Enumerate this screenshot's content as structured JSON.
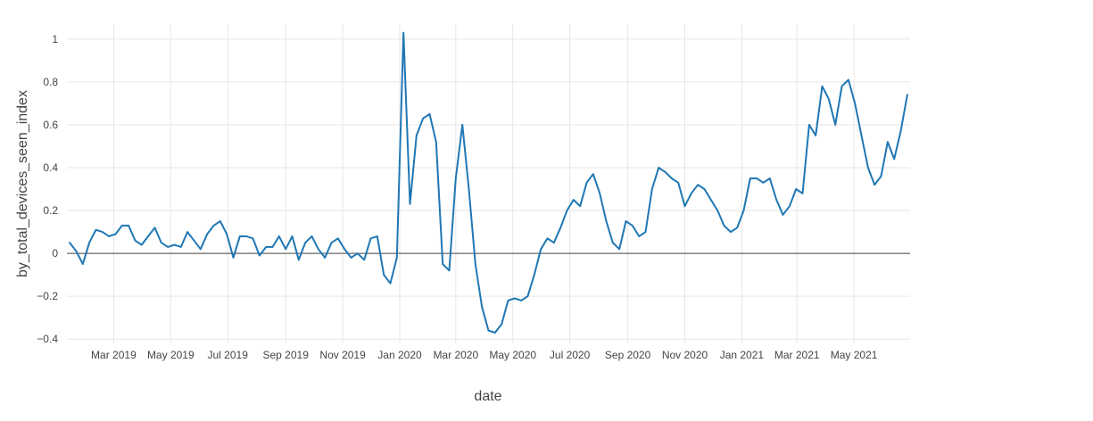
{
  "chart_data": {
    "type": "line",
    "title": "",
    "xlabel": "date",
    "ylabel": "by_total_devices_seen_index",
    "legend": "none",
    "grid": true,
    "xlim": [
      "2019-01-10",
      "2021-06-30"
    ],
    "ylim": [
      -0.42,
      1.07
    ],
    "x_ticks": [
      {
        "date": "2019-03-01",
        "label": "Mar 2019"
      },
      {
        "date": "2019-05-01",
        "label": "May 2019"
      },
      {
        "date": "2019-07-01",
        "label": "Jul 2019"
      },
      {
        "date": "2019-09-01",
        "label": "Sep 2019"
      },
      {
        "date": "2019-11-01",
        "label": "Nov 2019"
      },
      {
        "date": "2020-01-01",
        "label": "Jan 2020"
      },
      {
        "date": "2020-03-01",
        "label": "Mar 2020"
      },
      {
        "date": "2020-05-01",
        "label": "May 2020"
      },
      {
        "date": "2020-07-01",
        "label": "Jul 2020"
      },
      {
        "date": "2020-09-01",
        "label": "Sep 2020"
      },
      {
        "date": "2020-11-01",
        "label": "Nov 2020"
      },
      {
        "date": "2021-01-01",
        "label": "Jan 2021"
      },
      {
        "date": "2021-03-01",
        "label": "Mar 2021"
      },
      {
        "date": "2021-05-01",
        "label": "May 2021"
      }
    ],
    "y_ticks": [
      {
        "value": -0.4,
        "label": "−0.4"
      },
      {
        "value": -0.2,
        "label": "−0.2"
      },
      {
        "value": 0,
        "label": "0"
      },
      {
        "value": 0.2,
        "label": "0.2"
      },
      {
        "value": 0.4,
        "label": "0.4"
      },
      {
        "value": 0.6,
        "label": "0.6"
      },
      {
        "value": 0.8,
        "label": "0.8"
      },
      {
        "value": 1,
        "label": "1"
      }
    ],
    "colors": {
      "line": "#1f77b4",
      "grid": "#e6e6e6",
      "zero_line": "#7f7f7f",
      "text": "#444444",
      "background": "#ffffff"
    },
    "series": [
      {
        "name": "by_total_devices_seen_index",
        "x": [
          "2019-01-13",
          "2019-01-20",
          "2019-01-27",
          "2019-02-03",
          "2019-02-10",
          "2019-02-17",
          "2019-02-24",
          "2019-03-03",
          "2019-03-10",
          "2019-03-17",
          "2019-03-24",
          "2019-03-31",
          "2019-04-07",
          "2019-04-14",
          "2019-04-21",
          "2019-04-28",
          "2019-05-05",
          "2019-05-12",
          "2019-05-19",
          "2019-05-26",
          "2019-06-02",
          "2019-06-09",
          "2019-06-16",
          "2019-06-23",
          "2019-06-30",
          "2019-07-07",
          "2019-07-14",
          "2019-07-21",
          "2019-07-28",
          "2019-08-04",
          "2019-08-11",
          "2019-08-18",
          "2019-08-25",
          "2019-09-01",
          "2019-09-08",
          "2019-09-15",
          "2019-09-22",
          "2019-09-29",
          "2019-10-06",
          "2019-10-13",
          "2019-10-20",
          "2019-10-27",
          "2019-11-03",
          "2019-11-10",
          "2019-11-17",
          "2019-11-24",
          "2019-12-01",
          "2019-12-08",
          "2019-12-15",
          "2019-12-22",
          "2019-12-29",
          "2020-01-05",
          "2020-01-12",
          "2020-01-19",
          "2020-01-26",
          "2020-02-02",
          "2020-02-09",
          "2020-02-16",
          "2020-02-23",
          "2020-03-01",
          "2020-03-08",
          "2020-03-15",
          "2020-03-22",
          "2020-03-29",
          "2020-04-05",
          "2020-04-12",
          "2020-04-19",
          "2020-04-26",
          "2020-05-03",
          "2020-05-10",
          "2020-05-17",
          "2020-05-24",
          "2020-05-31",
          "2020-06-07",
          "2020-06-14",
          "2020-06-21",
          "2020-06-28",
          "2020-07-05",
          "2020-07-12",
          "2020-07-19",
          "2020-07-26",
          "2020-08-02",
          "2020-08-09",
          "2020-08-16",
          "2020-08-23",
          "2020-08-30",
          "2020-09-06",
          "2020-09-13",
          "2020-09-20",
          "2020-09-27",
          "2020-10-04",
          "2020-10-11",
          "2020-10-18",
          "2020-10-25",
          "2020-11-01",
          "2020-11-08",
          "2020-11-15",
          "2020-11-22",
          "2020-11-29",
          "2020-12-06",
          "2020-12-13",
          "2020-12-20",
          "2020-12-27",
          "2021-01-03",
          "2021-01-10",
          "2021-01-17",
          "2021-01-24",
          "2021-01-31",
          "2021-02-07",
          "2021-02-14",
          "2021-02-21",
          "2021-02-28",
          "2021-03-07",
          "2021-03-14",
          "2021-03-21",
          "2021-03-28",
          "2021-04-04",
          "2021-04-11",
          "2021-04-18",
          "2021-04-25",
          "2021-05-02",
          "2021-05-09",
          "2021-05-16",
          "2021-05-23",
          "2021-05-30",
          "2021-06-06",
          "2021-06-13",
          "2021-06-20",
          "2021-06-27"
        ],
        "y": [
          0.05,
          0.01,
          -0.05,
          0.05,
          0.11,
          0.1,
          0.08,
          0.09,
          0.13,
          0.13,
          0.06,
          0.04,
          0.08,
          0.12,
          0.05,
          0.03,
          0.04,
          0.03,
          0.1,
          0.06,
          0.02,
          0.09,
          0.13,
          0.15,
          0.09,
          -0.02,
          0.08,
          0.08,
          0.07,
          -0.01,
          0.03,
          0.03,
          0.08,
          0.02,
          0.08,
          -0.03,
          0.05,
          0.08,
          0.02,
          -0.02,
          0.05,
          0.07,
          0.02,
          -0.02,
          0.0,
          -0.03,
          0.07,
          0.08,
          -0.1,
          -0.14,
          -0.02,
          1.03,
          0.23,
          0.55,
          0.63,
          0.65,
          0.52,
          -0.05,
          -0.08,
          0.35,
          0.6,
          0.3,
          -0.05,
          -0.25,
          -0.36,
          -0.37,
          -0.33,
          -0.22,
          -0.21,
          -0.22,
          -0.2,
          -0.1,
          0.02,
          0.07,
          0.05,
          0.12,
          0.2,
          0.25,
          0.22,
          0.33,
          0.37,
          0.28,
          0.15,
          0.05,
          0.02,
          0.15,
          0.13,
          0.08,
          0.1,
          0.3,
          0.4,
          0.38,
          0.35,
          0.33,
          0.22,
          0.28,
          0.32,
          0.3,
          0.25,
          0.2,
          0.13,
          0.1,
          0.12,
          0.2,
          0.35,
          0.35,
          0.33,
          0.35,
          0.25,
          0.18,
          0.22,
          0.3,
          0.28,
          0.6,
          0.55,
          0.78,
          0.72,
          0.6,
          0.78,
          0.81,
          0.7,
          0.55,
          0.4,
          0.32,
          0.36,
          0.52,
          0.44,
          0.57,
          0.74
        ]
      }
    ]
  }
}
